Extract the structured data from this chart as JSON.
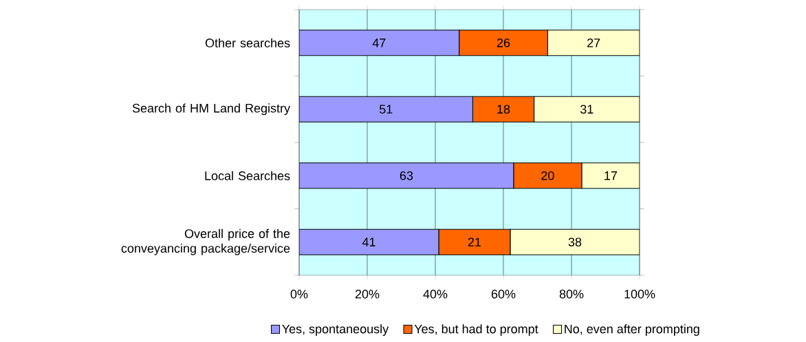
{
  "chart_data": {
    "type": "bar",
    "orientation": "horizontal",
    "stacked": true,
    "categories": [
      "Other searches",
      "Search of HM Land Registry",
      "Local Searches",
      "Overall price of the conveyancing package/service"
    ],
    "series": [
      {
        "name": "Yes, spontaneously",
        "color": "#9999ff",
        "values": [
          47,
          51,
          63,
          41
        ]
      },
      {
        "name": "Yes, but had to prompt",
        "color": "#ff6600",
        "values": [
          26,
          18,
          20,
          21
        ]
      },
      {
        "name": "No, even after prompting",
        "color": "#ffffcc",
        "values": [
          27,
          31,
          17,
          38
        ]
      }
    ],
    "xlim": [
      0,
      100
    ],
    "xticks": [
      {
        "value": 0,
        "label": "0%"
      },
      {
        "value": 20,
        "label": "20%"
      },
      {
        "value": 40,
        "label": "40%"
      },
      {
        "value": 60,
        "label": "60%"
      },
      {
        "value": 80,
        "label": "80%"
      },
      {
        "value": 100,
        "label": "100%"
      }
    ],
    "grid": "x",
    "legend": "bottom",
    "data_labels": true
  }
}
